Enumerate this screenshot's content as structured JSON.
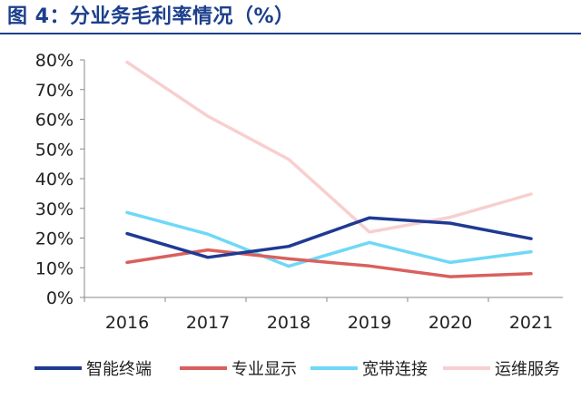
{
  "title": "图 4：分业务毛利率情况（%）",
  "colors": {
    "title": "#1c3f8c",
    "axis": "#888888"
  },
  "chart_data": {
    "type": "line",
    "title": "",
    "xlabel": "",
    "ylabel": "",
    "categories": [
      "2016",
      "2017",
      "2018",
      "2019",
      "2020",
      "2021"
    ],
    "ylim": [
      0,
      80
    ],
    "yticks": [
      0,
      10,
      20,
      30,
      40,
      50,
      60,
      70,
      80
    ],
    "ytick_labels": [
      "0%",
      "10%",
      "20%",
      "30%",
      "40%",
      "50%",
      "60%",
      "70%",
      "80%"
    ],
    "grid": false,
    "legend_position": "bottom",
    "series": [
      {
        "name": "智能终端",
        "color": "#1f3a93",
        "values": [
          21.5,
          13.5,
          17.2,
          26.8,
          25.0,
          19.8
        ]
      },
      {
        "name": "专业显示",
        "color": "#d9605e",
        "values": [
          11.8,
          16.0,
          13.0,
          10.6,
          7.0,
          8.0
        ]
      },
      {
        "name": "宽带连接",
        "color": "#6fd8f7",
        "values": [
          28.6,
          21.3,
          10.5,
          18.5,
          11.8,
          15.4
        ]
      },
      {
        "name": "运维服务",
        "color": "#f8cfcf",
        "values": [
          79.2,
          61.0,
          46.5,
          22.0,
          27.0,
          34.8
        ]
      }
    ]
  }
}
